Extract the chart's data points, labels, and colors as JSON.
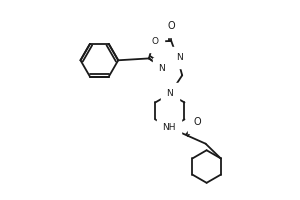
{
  "bg_color": "#ffffff",
  "line_color": "#1a1a1a",
  "line_width": 1.3,
  "figsize": [
    3.0,
    2.0
  ],
  "dpi": 100,
  "xlim": [
    0.0,
    1.0
  ],
  "ylim": [
    0.0,
    1.0
  ]
}
